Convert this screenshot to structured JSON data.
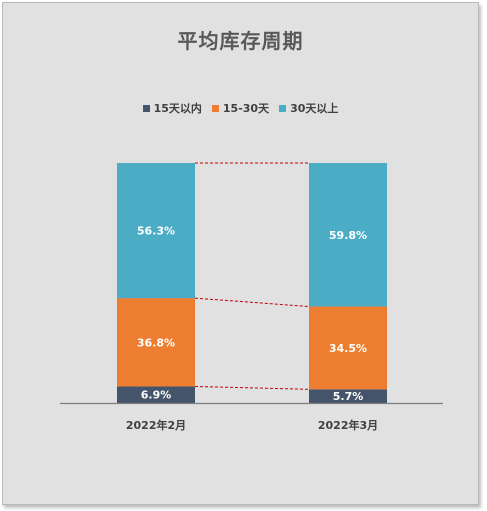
{
  "chart_data": {
    "type": "bar",
    "stacked": true,
    "percent_stacked": true,
    "title": "平均库存周期",
    "categories": [
      "2022年2月",
      "2022年3月"
    ],
    "series": [
      {
        "name": "15天以内",
        "color": "#44546a",
        "values": [
          6.9,
          5.7
        ],
        "labels": [
          "6.9%",
          "5.7%"
        ]
      },
      {
        "name": "15-30天",
        "color": "#ed7d31",
        "values": [
          36.8,
          34.5
        ],
        "labels": [
          "36.8%",
          "34.5%"
        ]
      },
      {
        "name": "30天以上",
        "color": "#4bacc6",
        "values": [
          56.3,
          59.8
        ],
        "labels": [
          "56.3%",
          "59.8%"
        ]
      }
    ],
    "ylim": [
      0,
      100
    ],
    "series_lines": true,
    "legend_position": "top",
    "grid": false
  },
  "colors": {
    "background": "#e1e1e1",
    "axis": "#7f7f7f",
    "series_line": "#c00000",
    "data_label": "#ffffff",
    "category_label": "#404040"
  }
}
